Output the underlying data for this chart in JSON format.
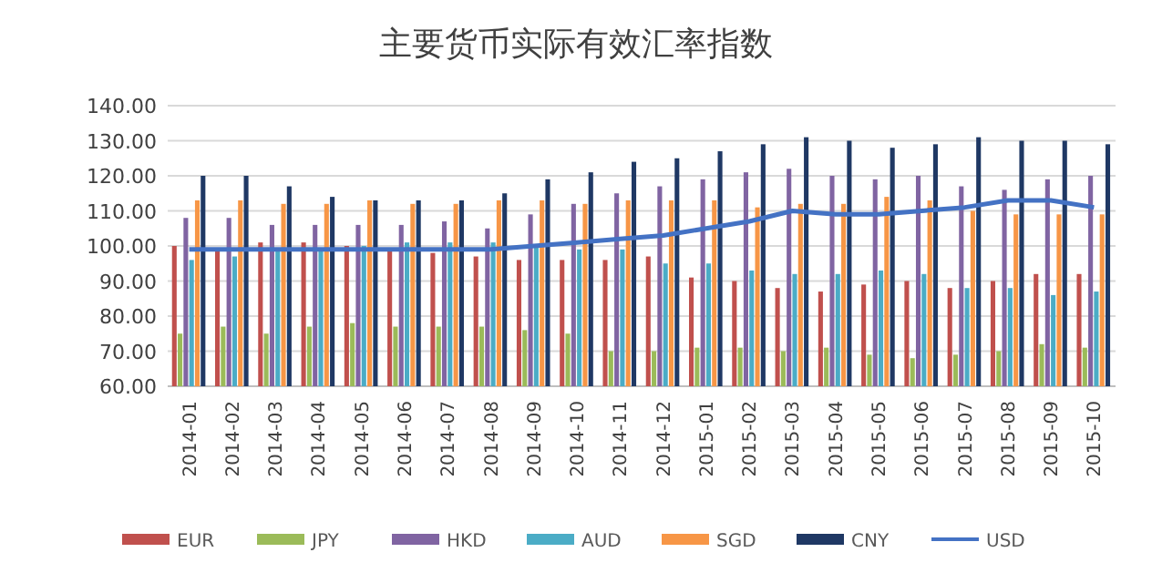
{
  "chart_data": {
    "type": "bar",
    "title": "主要货币实际有效汇率指数",
    "categories": [
      "2014-01",
      "2014-02",
      "2014-03",
      "2014-04",
      "2014-05",
      "2014-06",
      "2014-07",
      "2014-08",
      "2014-09",
      "2014-10",
      "2014-11",
      "2014-12",
      "2015-01",
      "2015-02",
      "2015-03",
      "2015-04",
      "2015-05",
      "2015-06",
      "2015-07",
      "2015-08",
      "2015-09",
      "2015-10"
    ],
    "series": [
      {
        "name": "EUR",
        "color": "#c0504d",
        "values": [
          100,
          99,
          101,
          101,
          100,
          99,
          98,
          97,
          96,
          96,
          96,
          97,
          91,
          90,
          88,
          87,
          89,
          90,
          88,
          90,
          92,
          92
        ]
      },
      {
        "name": "JPY",
        "color": "#9bbb59",
        "values": [
          75,
          77,
          75,
          77,
          78,
          77,
          77,
          77,
          76,
          75,
          70,
          70,
          71,
          71,
          70,
          71,
          69,
          68,
          69,
          70,
          72,
          71
        ]
      },
      {
        "name": "HKD",
        "color": "#8064a2",
        "values": [
          108,
          108,
          106,
          106,
          106,
          106,
          107,
          105,
          109,
          112,
          115,
          117,
          119,
          121,
          122,
          120,
          119,
          120,
          117,
          116,
          119,
          120
        ]
      },
      {
        "name": "AUD",
        "color": "#4bacc6",
        "values": [
          96,
          97,
          99,
          99,
          100,
          101,
          101,
          101,
          100,
          99,
          99,
          95,
          95,
          93,
          92,
          92,
          93,
          92,
          88,
          88,
          86,
          87
        ]
      },
      {
        "name": "SGD",
        "color": "#f79646",
        "values": [
          113,
          113,
          112,
          112,
          113,
          112,
          112,
          113,
          113,
          112,
          113,
          113,
          113,
          111,
          112,
          112,
          114,
          113,
          110,
          109,
          109,
          109
        ]
      },
      {
        "name": "CNY",
        "color": "#1f3864",
        "values": [
          120,
          120,
          117,
          114,
          113,
          113,
          113,
          115,
          119,
          121,
          124,
          125,
          127,
          129,
          131,
          130,
          128,
          129,
          131,
          130,
          130,
          129
        ]
      },
      {
        "name": "USD",
        "type": "line",
        "color": "#4472c4",
        "values": [
          99,
          99,
          99,
          99,
          99,
          99,
          99,
          99,
          100,
          101,
          102,
          103,
          105,
          107,
          110,
          109,
          109,
          110,
          111,
          113,
          113,
          111
        ]
      }
    ],
    "ylim": [
      60,
      140
    ],
    "yticks": [
      {
        "value": 60,
        "label": "60.00"
      },
      {
        "value": 70,
        "label": "70.00"
      },
      {
        "value": 80,
        "label": "80.00"
      },
      {
        "value": 90,
        "label": "90.00"
      },
      {
        "value": 100,
        "label": "100.00"
      },
      {
        "value": 110,
        "label": "110.00"
      },
      {
        "value": 120,
        "label": "120.00"
      },
      {
        "value": 130,
        "label": "130.00"
      },
      {
        "value": 140,
        "label": "140.00"
      }
    ],
    "grid": "y",
    "legend": "bottom"
  }
}
